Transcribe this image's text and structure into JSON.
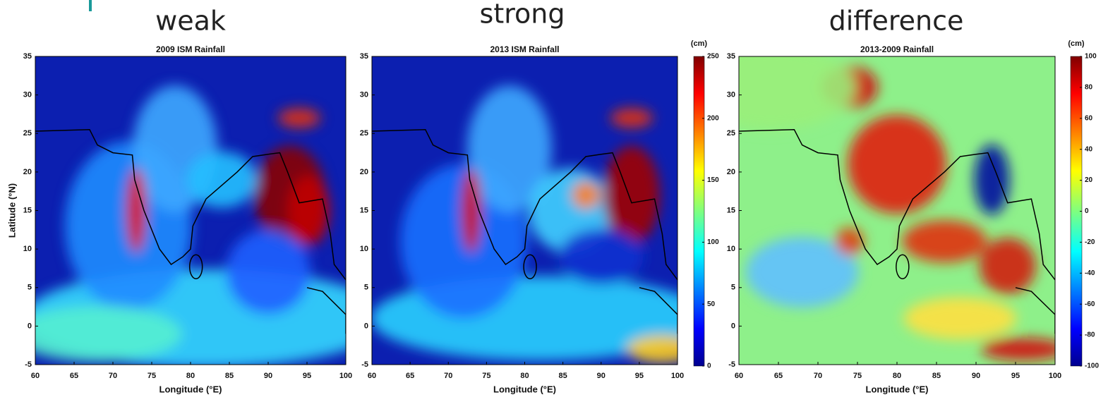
{
  "headers": [
    "weak",
    "strong",
    "difference"
  ],
  "panels": [
    {
      "title": "2009 ISM Rainfall",
      "xlabel": "Longitude (°E)",
      "ylabel": "Latitude (°N)",
      "xlim": [
        60,
        100
      ],
      "ylim": [
        -5,
        35
      ],
      "xticks": [
        60,
        65,
        70,
        75,
        80,
        85,
        90,
        95,
        100
      ],
      "yticks": [
        -5,
        0,
        5,
        10,
        15,
        20,
        25,
        30,
        35
      ]
    },
    {
      "title": "2013 ISM Rainfall",
      "xlabel": "Longitude (°E)",
      "xlim": [
        60,
        100
      ],
      "ylim": [
        -5,
        35
      ],
      "xticks": [
        60,
        65,
        70,
        75,
        80,
        85,
        90,
        95,
        100
      ],
      "yticks": [
        -5,
        0,
        5,
        10,
        15,
        20,
        25,
        30,
        35
      ]
    },
    {
      "title": "2013-2009 Rainfall",
      "xlabel": "Longitude (°E)",
      "xlim": [
        60,
        100
      ],
      "ylim": [
        -5,
        35
      ],
      "xticks": [
        60,
        65,
        70,
        75,
        80,
        85,
        90,
        95,
        100
      ],
      "yticks": [
        -5,
        0,
        5,
        10,
        15,
        20,
        25,
        30,
        35
      ]
    }
  ],
  "colorbars": [
    {
      "unit": "(cm)",
      "lim": [
        0,
        250
      ],
      "ticks": [
        0,
        50,
        100,
        150,
        200,
        250
      ]
    },
    {
      "unit": "(cm)",
      "lim": [
        -100,
        100
      ],
      "ticks": [
        -100,
        -80,
        -60,
        -40,
        -20,
        0,
        20,
        40,
        60,
        80,
        100
      ]
    }
  ]
}
